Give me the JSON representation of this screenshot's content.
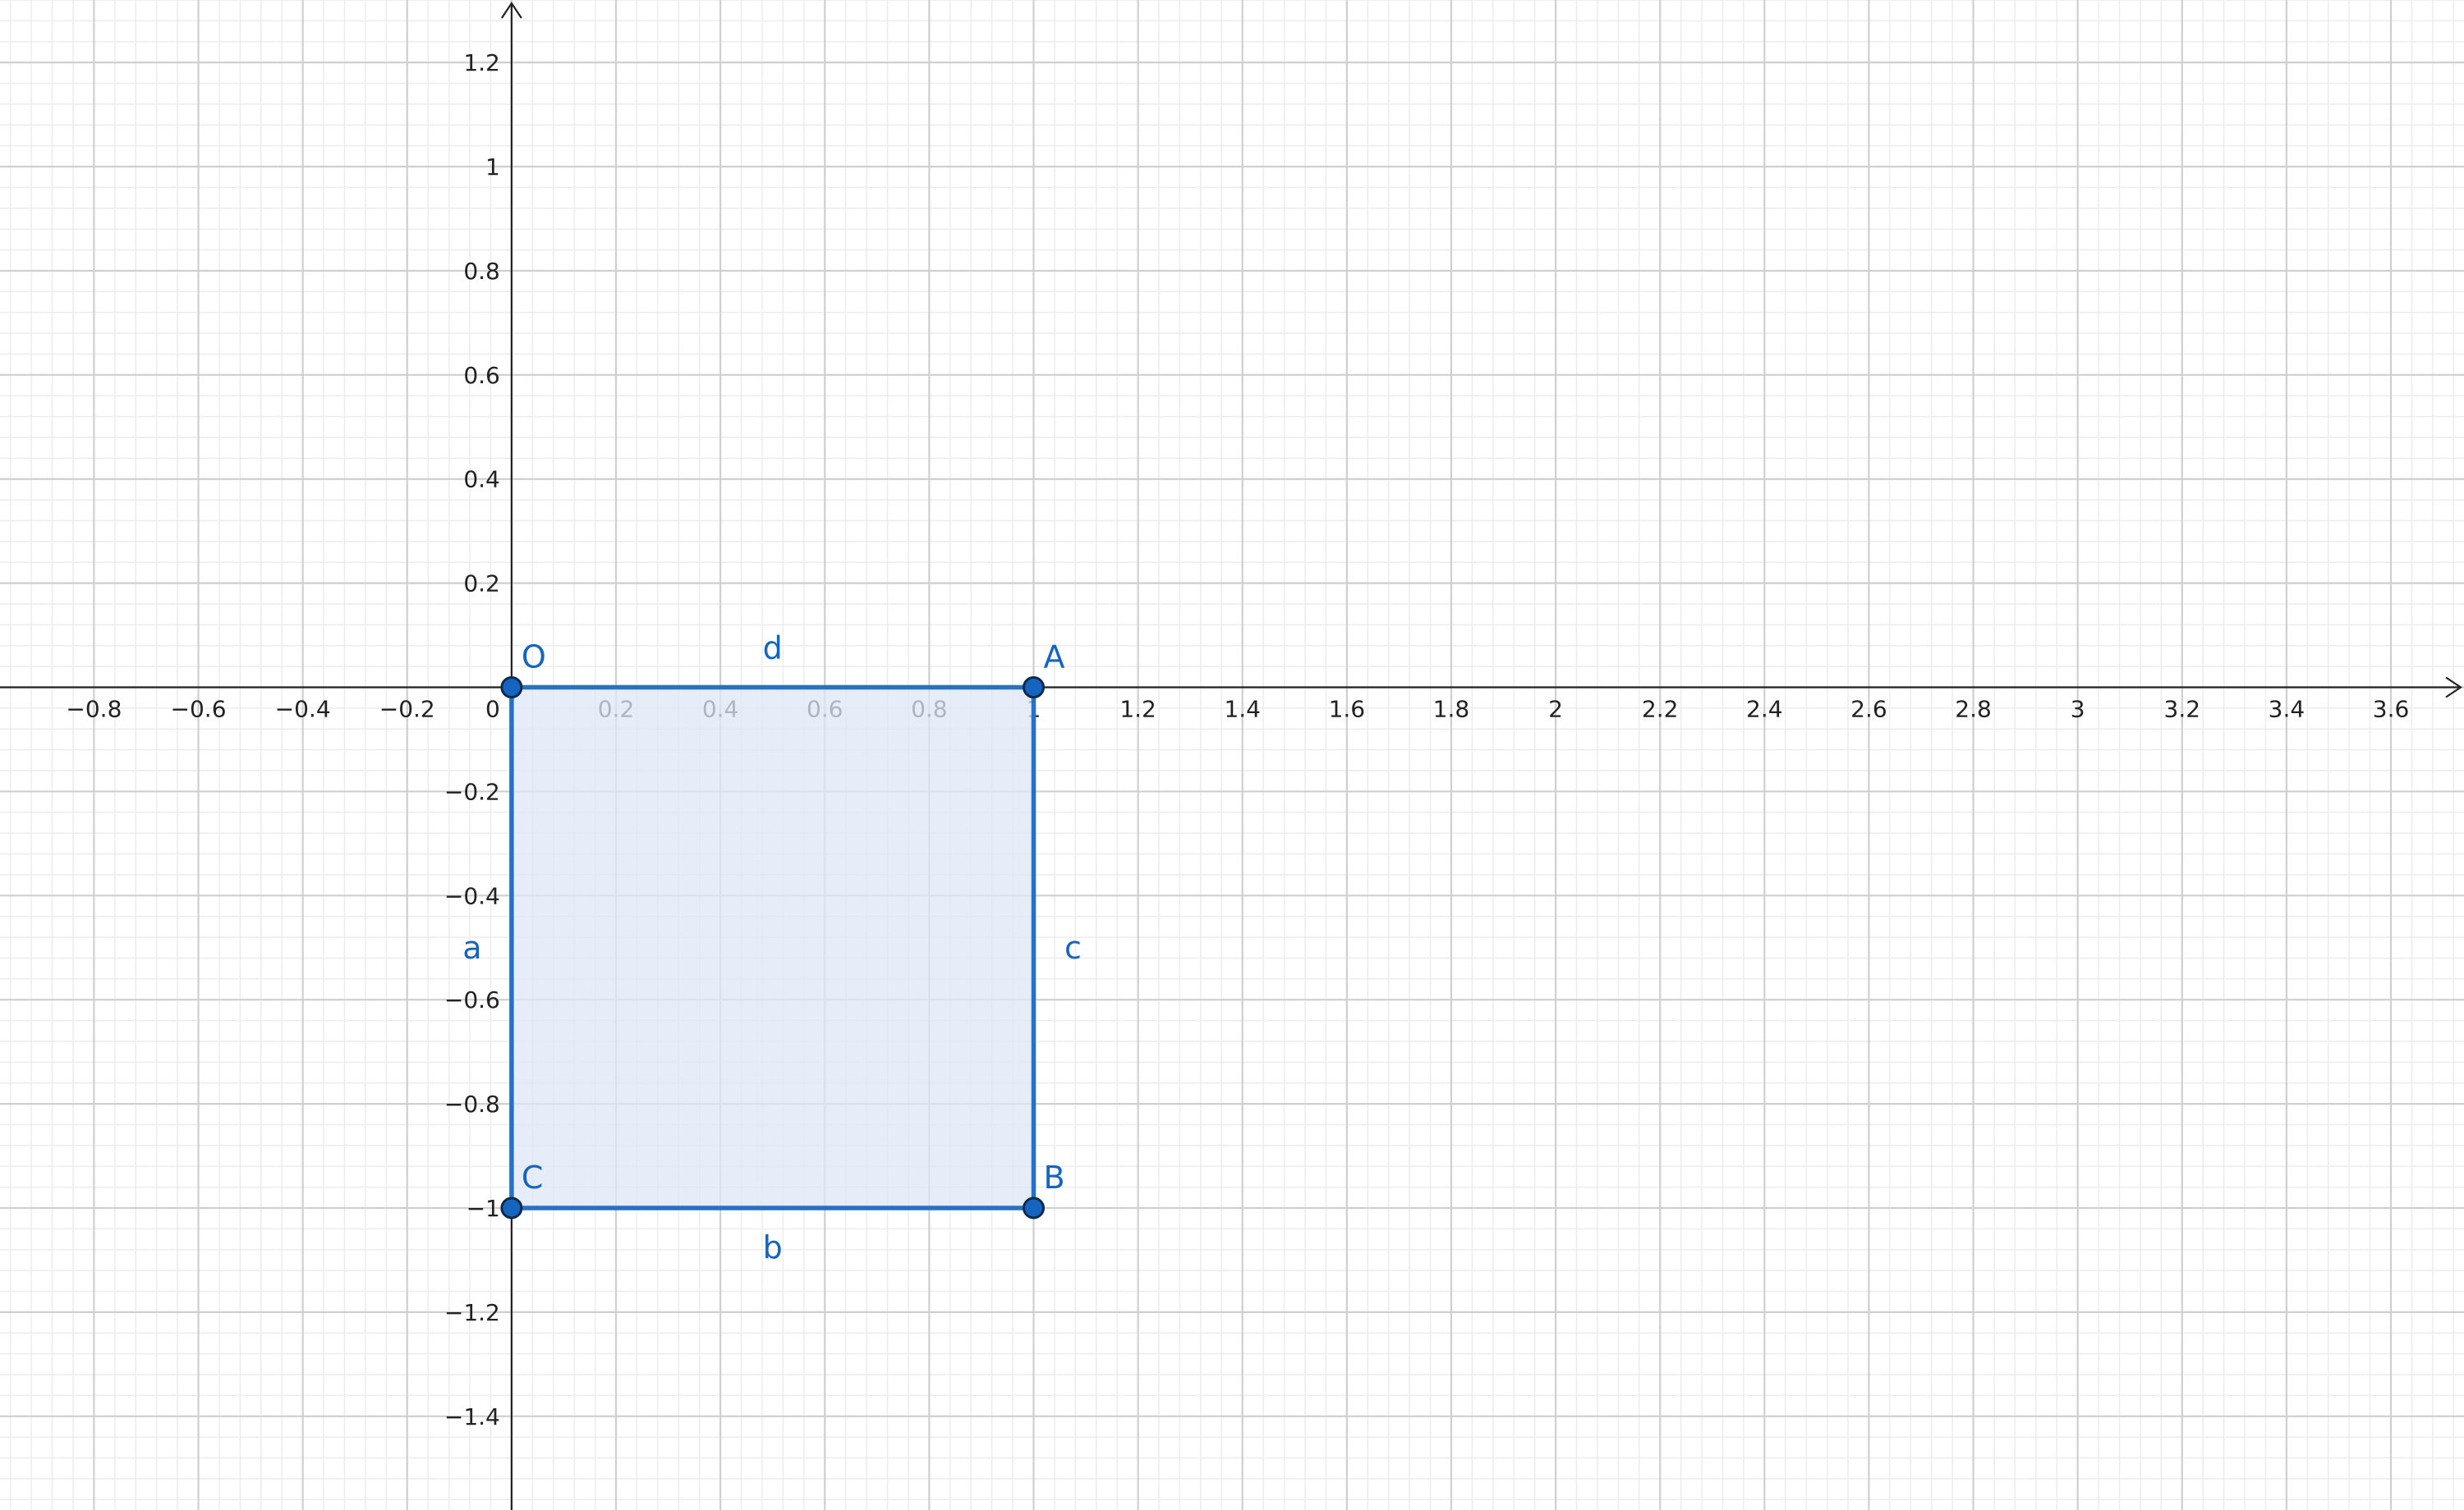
{
  "view": {
    "x_range": [
      -0.98,
      3.74
    ],
    "y_range": [
      -1.58,
      1.32
    ],
    "minor_step": 0.04,
    "major_step": 0.2
  },
  "axes": {
    "x_tick_labels": [
      {
        "value": -0.8,
        "label": "−0.8"
      },
      {
        "value": -0.6,
        "label": "−0.6"
      },
      {
        "value": -0.4,
        "label": "−0.4"
      },
      {
        "value": -0.2,
        "label": "−0.2"
      },
      {
        "value": 0.2,
        "label": "0.2"
      },
      {
        "value": 0.4,
        "label": "0.4"
      },
      {
        "value": 0.6,
        "label": "0.6"
      },
      {
        "value": 0.8,
        "label": "0.8"
      },
      {
        "value": 1,
        "label": "1"
      },
      {
        "value": 1.2,
        "label": "1.2"
      },
      {
        "value": 1.4,
        "label": "1.4"
      },
      {
        "value": 1.6,
        "label": "1.6"
      },
      {
        "value": 1.8,
        "label": "1.8"
      },
      {
        "value": 2,
        "label": "2"
      },
      {
        "value": 2.2,
        "label": "2.2"
      },
      {
        "value": 2.4,
        "label": "2.4"
      },
      {
        "value": 2.6,
        "label": "2.6"
      },
      {
        "value": 2.8,
        "label": "2.8"
      },
      {
        "value": 3,
        "label": "3"
      },
      {
        "value": 3.2,
        "label": "3.2"
      },
      {
        "value": 3.4,
        "label": "3.4"
      },
      {
        "value": 3.6,
        "label": "3.6"
      }
    ],
    "y_tick_labels": [
      {
        "value": 1.2,
        "label": "1.2"
      },
      {
        "value": 1,
        "label": "1"
      },
      {
        "value": 0.8,
        "label": "0.8"
      },
      {
        "value": 0.6,
        "label": "0.6"
      },
      {
        "value": 0.4,
        "label": "0.4"
      },
      {
        "value": 0.2,
        "label": "0.2"
      },
      {
        "value": -0.2,
        "label": "−0.2"
      },
      {
        "value": -0.4,
        "label": "−0.4"
      },
      {
        "value": -0.6,
        "label": "−0.6"
      },
      {
        "value": -0.8,
        "label": "−0.8"
      },
      {
        "value": -1,
        "label": "−1"
      },
      {
        "value": -1.2,
        "label": "−1.2"
      },
      {
        "value": -1.4,
        "label": "−1.4"
      }
    ],
    "origin_label": "0"
  },
  "colors": {
    "shape_stroke": "#2a70c2",
    "shape_fill": "#dde7f6",
    "point_fill": "#1565c0",
    "label": "#1565c0"
  },
  "points": [
    {
      "name": "O",
      "x": 0,
      "y": 0
    },
    {
      "name": "A",
      "x": 1,
      "y": 0
    },
    {
      "name": "B",
      "x": 1,
      "y": -1
    },
    {
      "name": "C",
      "x": 0,
      "y": -1
    }
  ],
  "segments": [
    {
      "name": "d",
      "from": "O",
      "to": "A"
    },
    {
      "name": "c",
      "from": "A",
      "to": "B"
    },
    {
      "name": "b",
      "from": "B",
      "to": "C"
    },
    {
      "name": "a",
      "from": "C",
      "to": "O"
    }
  ],
  "polygon": [
    "O",
    "A",
    "B",
    "C"
  ]
}
